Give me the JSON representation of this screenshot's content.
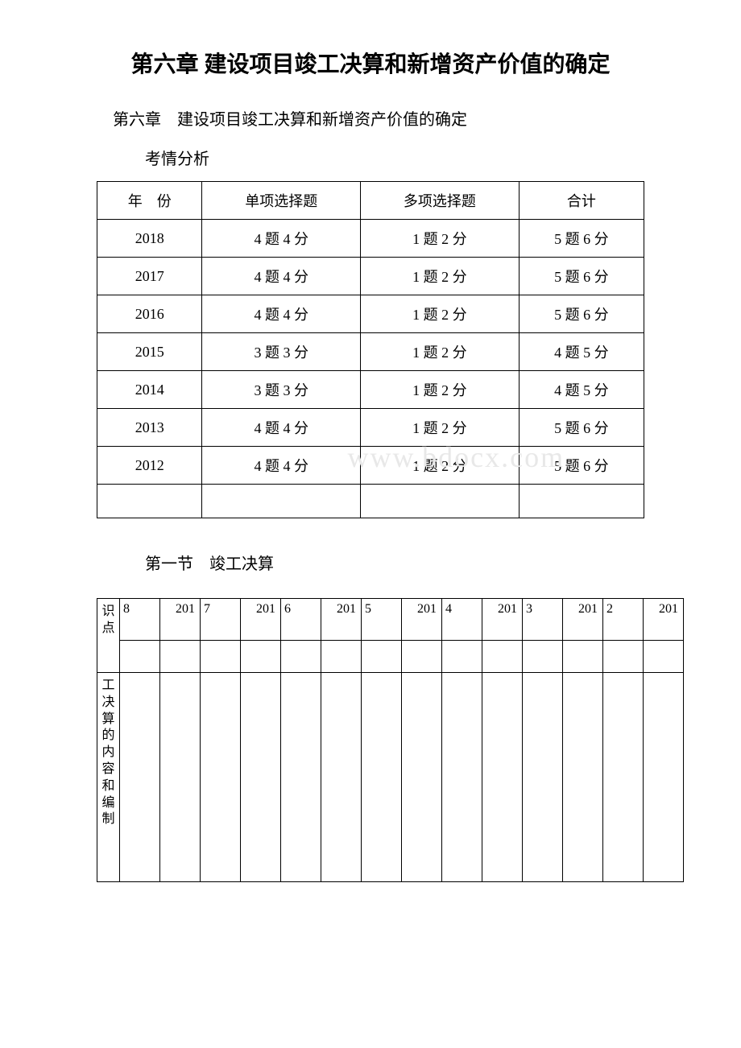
{
  "main_title": "第六章 建设项目竣工决算和新增资产价值的确定",
  "subtitle": "第六章　建设项目竣工决算和新增资产价值的确定",
  "analysis_label": "考情分析",
  "table1": {
    "headers": [
      "年　份",
      "单项选择题",
      "多项选择题",
      "合计"
    ],
    "rows": [
      [
        "2018",
        "4 题 4 分",
        "1 题 2 分",
        "5 题 6 分"
      ],
      [
        "2017",
        "4 题 4 分",
        "1 题 2 分",
        "5 题 6 分"
      ],
      [
        "2016",
        "4 题 4 分",
        "1 题 2 分",
        "5 题 6 分"
      ],
      [
        "2015",
        "3 题 3 分",
        "1 题 2 分",
        "4 题 5 分"
      ],
      [
        "2014",
        "3 题 3 分",
        "1 题 2 分",
        "4 题 5 分"
      ],
      [
        "2013",
        "4 题 4 分",
        "1 题 2 分",
        "5 题 6 分"
      ],
      [
        "2012",
        "4 题 4 分",
        "1 题 2 分",
        "5 题 6 分"
      ]
    ],
    "watermark_row_index": 6,
    "empty_row": [
      "",
      "",
      "",
      ""
    ]
  },
  "watermark_text": "www.bdocx.com",
  "section1_title": "第一节　竣工决算",
  "table2": {
    "row_header1": "识点",
    "row_header2": "工决算的内容和编制",
    "year_prefix": "201",
    "year_suffixes": [
      "8",
      "7",
      "6",
      "5",
      "4",
      "3",
      "2"
    ]
  },
  "colors": {
    "text": "#000000",
    "background": "#ffffff",
    "border": "#000000",
    "watermark": "#e8e8e8"
  }
}
